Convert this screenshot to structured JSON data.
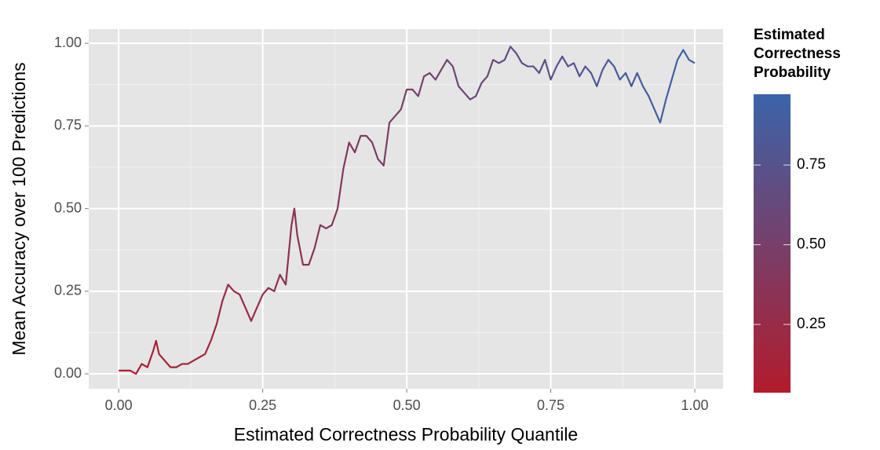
{
  "chart_data": {
    "type": "line",
    "x_label": "Estimated Correctness Probability Quantile",
    "y_label": "Mean Accuracy over 100 Predictions",
    "x": [
      0.0,
      0.02,
      0.03,
      0.04,
      0.05,
      0.06,
      0.065,
      0.07,
      0.08,
      0.09,
      0.1,
      0.11,
      0.12,
      0.13,
      0.14,
      0.15,
      0.16,
      0.17,
      0.18,
      0.19,
      0.2,
      0.21,
      0.22,
      0.23,
      0.24,
      0.25,
      0.26,
      0.27,
      0.28,
      0.29,
      0.3,
      0.305,
      0.31,
      0.32,
      0.33,
      0.34,
      0.35,
      0.36,
      0.37,
      0.38,
      0.39,
      0.4,
      0.41,
      0.42,
      0.43,
      0.44,
      0.45,
      0.46,
      0.47,
      0.48,
      0.49,
      0.5,
      0.51,
      0.52,
      0.53,
      0.54,
      0.55,
      0.56,
      0.57,
      0.58,
      0.59,
      0.6,
      0.61,
      0.62,
      0.63,
      0.64,
      0.65,
      0.66,
      0.67,
      0.68,
      0.69,
      0.7,
      0.71,
      0.72,
      0.73,
      0.74,
      0.75,
      0.76,
      0.77,
      0.78,
      0.79,
      0.8,
      0.81,
      0.82,
      0.83,
      0.84,
      0.85,
      0.86,
      0.87,
      0.88,
      0.89,
      0.9,
      0.91,
      0.92,
      0.93,
      0.94,
      0.95,
      0.96,
      0.97,
      0.98,
      0.99,
      1.0
    ],
    "series": [
      {
        "values": [
          0.01,
          0.01,
          0.0,
          0.03,
          0.02,
          0.07,
          0.1,
          0.06,
          0.04,
          0.02,
          0.02,
          0.03,
          0.03,
          0.04,
          0.05,
          0.06,
          0.1,
          0.15,
          0.22,
          0.27,
          0.25,
          0.24,
          0.2,
          0.16,
          0.2,
          0.24,
          0.26,
          0.25,
          0.3,
          0.27,
          0.45,
          0.5,
          0.42,
          0.33,
          0.33,
          0.38,
          0.45,
          0.44,
          0.45,
          0.5,
          0.62,
          0.7,
          0.67,
          0.72,
          0.72,
          0.7,
          0.65,
          0.63,
          0.76,
          0.78,
          0.8,
          0.86,
          0.86,
          0.84,
          0.9,
          0.91,
          0.89,
          0.92,
          0.95,
          0.93,
          0.87,
          0.85,
          0.83,
          0.84,
          0.88,
          0.9,
          0.95,
          0.94,
          0.95,
          0.99,
          0.97,
          0.94,
          0.93,
          0.93,
          0.91,
          0.95,
          0.89,
          0.93,
          0.96,
          0.93,
          0.94,
          0.9,
          0.93,
          0.91,
          0.87,
          0.92,
          0.95,
          0.93,
          0.89,
          0.91,
          0.87,
          0.91,
          0.87,
          0.84,
          0.8,
          0.76,
          0.83,
          0.89,
          0.95,
          0.98,
          0.95,
          0.94
        ]
      }
    ],
    "xlim": [
      -0.052,
      1.049
    ],
    "ylim": [
      -0.045,
      1.043
    ],
    "xticks": [
      {
        "value": 0,
        "label": "0.00"
      },
      {
        "value": 0.25,
        "label": "0.25"
      },
      {
        "value": 0.5,
        "label": "0.50"
      },
      {
        "value": 0.75,
        "label": "0.75"
      },
      {
        "value": 1,
        "label": "1.00"
      }
    ],
    "yticks": [
      {
        "value": 0,
        "label": "0.00"
      },
      {
        "value": 0.25,
        "label": "0.25"
      },
      {
        "value": 0.5,
        "label": "0.50"
      },
      {
        "value": 0.75,
        "label": "0.75"
      },
      {
        "value": 1,
        "label": "1.00"
      }
    ],
    "grid": true,
    "colorbar": {
      "title": "Estimated Correctness Probability",
      "lim": [
        0.036,
        0.972
      ],
      "ticks": [
        {
          "value": 0.25,
          "label": "0.25"
        },
        {
          "value": 0.5,
          "label": "0.50"
        },
        {
          "value": 0.75,
          "label": "0.75"
        }
      ],
      "colors": [
        "#b31b2c",
        "#3a64a9"
      ]
    }
  }
}
